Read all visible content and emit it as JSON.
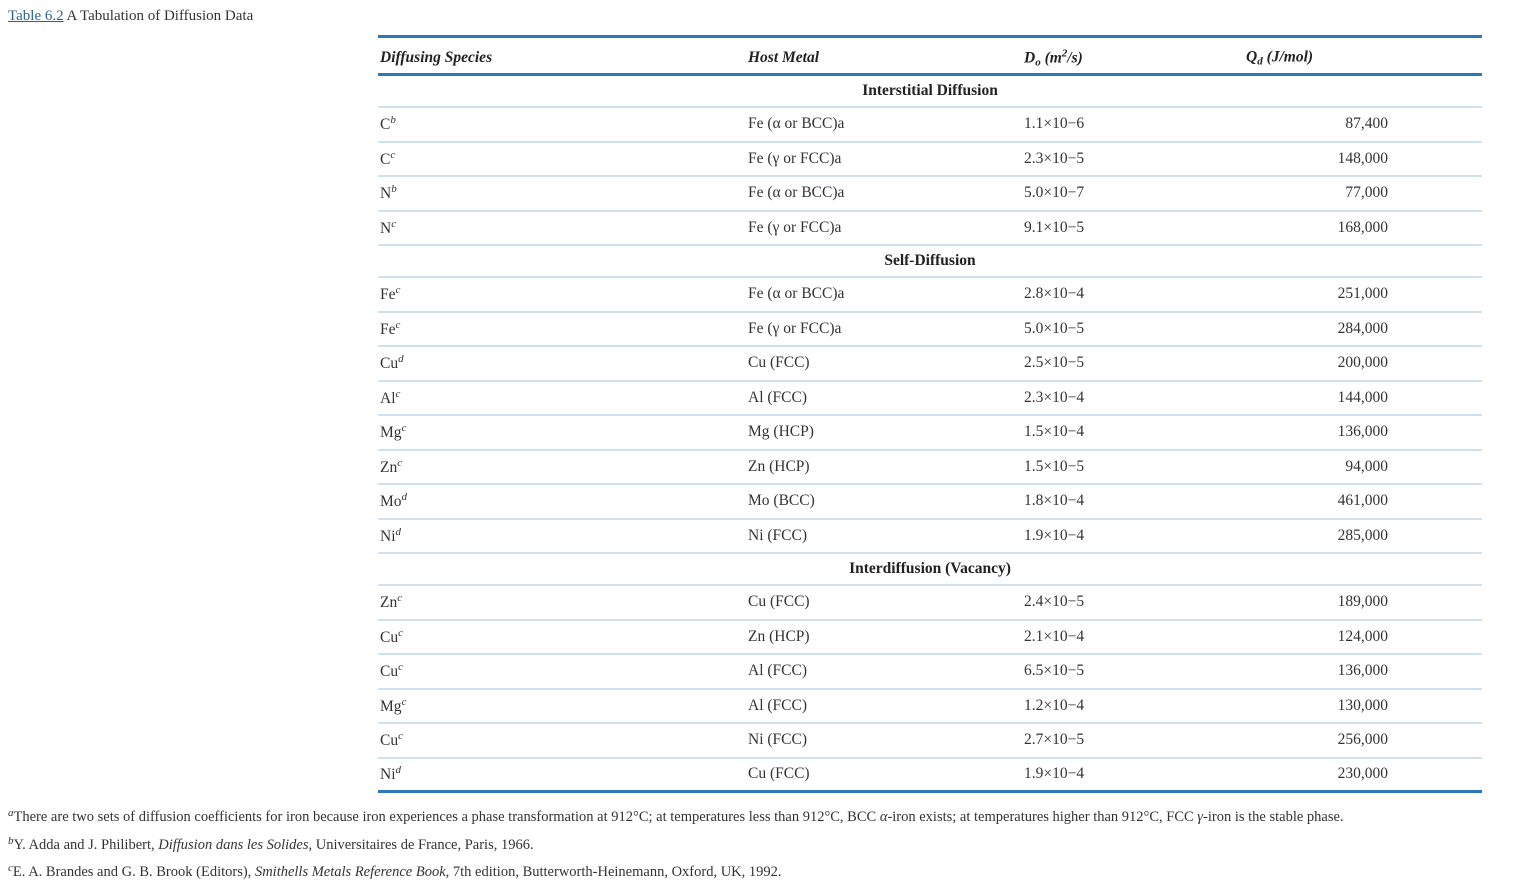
{
  "caption": {
    "link": "Table 6.2",
    "title": "A Tabulation of Diffusion Data"
  },
  "table": {
    "headers": [
      [
        {
          "text": "Diffusing Species"
        }
      ],
      [
        {
          "text": "Host Metal"
        }
      ],
      [
        {
          "text": "D"
        },
        {
          "text": "o",
          "sub": true
        },
        {
          "text": " (m"
        },
        {
          "text": "2",
          "sup": true
        },
        {
          "text": "/s)"
        }
      ],
      [
        {
          "text": "Q"
        },
        {
          "text": "d",
          "sub": true
        },
        {
          "text": " (J/mol)"
        }
      ]
    ],
    "sections": [
      {
        "title": "Interstitial Diffusion",
        "rows": [
          {
            "species": "C",
            "note": "b",
            "host": "Fe (α or BCC)a",
            "d0": "1.1×10−6",
            "qd": "87,400"
          },
          {
            "species": "C",
            "note": "c",
            "host": "Fe (γ or FCC)a",
            "d0": "2.3×10−5",
            "qd": "148,000"
          },
          {
            "species": "N",
            "note": "b",
            "host": "Fe (α or BCC)a",
            "d0": "5.0×10−7",
            "qd": "77,000"
          },
          {
            "species": "N",
            "note": "c",
            "host": "Fe (γ or FCC)a",
            "d0": "9.1×10−5",
            "qd": "168,000"
          }
        ]
      },
      {
        "title": "Self-Diffusion",
        "rows": [
          {
            "species": "Fe",
            "note": "c",
            "host": "Fe (α or BCC)a",
            "d0": "2.8×10−4",
            "qd": "251,000"
          },
          {
            "species": "Fe",
            "note": "c",
            "host": "Fe (γ or FCC)a",
            "d0": "5.0×10−5",
            "qd": "284,000"
          },
          {
            "species": "Cu",
            "note": "d",
            "host": "Cu (FCC)",
            "d0": "2.5×10−5",
            "qd": "200,000"
          },
          {
            "species": "Al",
            "note": "c",
            "host": "Al (FCC)",
            "d0": "2.3×10−4",
            "qd": "144,000"
          },
          {
            "species": "Mg",
            "note": "c",
            "host": "Mg (HCP)",
            "d0": "1.5×10−4",
            "qd": "136,000"
          },
          {
            "species": "Zn",
            "note": "c",
            "host": "Zn (HCP)",
            "d0": "1.5×10−5",
            "qd": "94,000"
          },
          {
            "species": "Mo",
            "note": "d",
            "host": "Mo (BCC)",
            "d0": "1.8×10−4",
            "qd": "461,000"
          },
          {
            "species": "Ni",
            "note": "d",
            "host": "Ni (FCC)",
            "d0": "1.9×10−4",
            "qd": "285,000"
          }
        ]
      },
      {
        "title": "Interdiffusion (Vacancy)",
        "rows": [
          {
            "species": "Zn",
            "note": "c",
            "host": "Cu (FCC)",
            "d0": "2.4×10−5",
            "qd": "189,000"
          },
          {
            "species": "Cu",
            "note": "c",
            "host": "Zn (HCP)",
            "d0": "2.1×10−4",
            "qd": "124,000"
          },
          {
            "species": "Cu",
            "note": "c",
            "host": "Al (FCC)",
            "d0": "6.5×10−5",
            "qd": "136,000"
          },
          {
            "species": "Mg",
            "note": "c",
            "host": "Al (FCC)",
            "d0": "1.2×10−4",
            "qd": "130,000"
          },
          {
            "species": "Cu",
            "note": "c",
            "host": "Ni (FCC)",
            "d0": "2.7×10−5",
            "qd": "256,000"
          },
          {
            "species": "Ni",
            "note": "d",
            "host": "Cu (FCC)",
            "d0": "1.9×10−4",
            "qd": "230,000"
          }
        ]
      }
    ]
  },
  "footnotes": [
    {
      "marker": "a",
      "parts": [
        {
          "text": "There are two sets of diffusion coefficients for iron because iron experiences a phase transformation at 912°C; at temperatures less than 912°C, BCC "
        },
        {
          "text": "α",
          "italic": true
        },
        {
          "text": "-iron exists; at temperatures higher than 912°C, FCC "
        },
        {
          "text": "γ",
          "italic": true
        },
        {
          "text": "-iron is the stable phase."
        }
      ]
    },
    {
      "marker": "b",
      "parts": [
        {
          "text": "Y. Adda and J. Philibert, "
        },
        {
          "text": "Diffusion dans les Solides",
          "italic": true
        },
        {
          "text": ", Universitaires de France, Paris, 1966."
        }
      ]
    },
    {
      "marker": "c",
      "parts": [
        {
          "text": "E. A. Brandes and G. B. Brook (Editors), "
        },
        {
          "text": "Smithells Metals Reference Book",
          "italic": true
        },
        {
          "text": ", 7th edition, Butterworth-Heinemann, Oxford, UK, 1992."
        }
      ]
    }
  ]
}
